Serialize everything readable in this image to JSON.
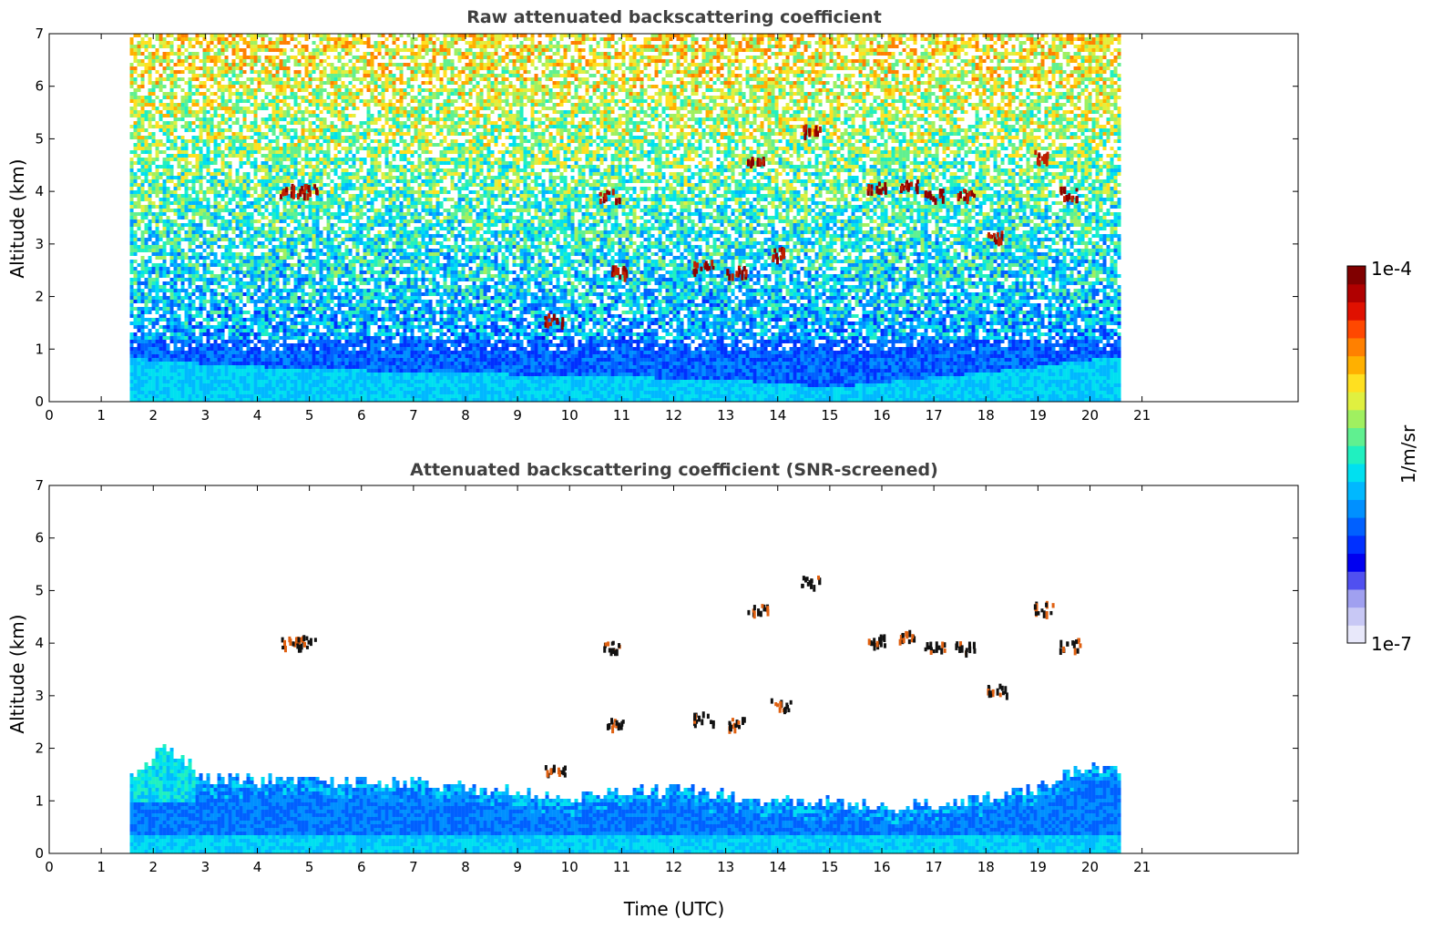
{
  "chart_data": [
    {
      "type": "heatmap",
      "title": "Raw attenuated backscattering coefficient",
      "xlabel": "",
      "ylabel": "Altitude (km)",
      "xlim": [
        0,
        24
      ],
      "ylim": [
        0,
        7
      ],
      "x_ticks": [
        "0",
        "1",
        "2",
        "3",
        "4",
        "5",
        "6",
        "7",
        "8",
        "9",
        "10",
        "11",
        "12",
        "13",
        "14",
        "15",
        "16",
        "17",
        "18",
        "19",
        "20",
        "21"
      ],
      "y_ticks": [
        "0",
        "1",
        "2",
        "3",
        "4",
        "5",
        "6",
        "7"
      ],
      "data_extent_hours": [
        1.55,
        20.55
      ],
      "log_scale": true,
      "boundary_layer_top_km": [
        [
          1.6,
          0.85
        ],
        [
          3.0,
          0.75
        ],
        [
          5.0,
          0.65
        ],
        [
          7.0,
          0.6
        ],
        [
          9.0,
          0.55
        ],
        [
          11.0,
          0.5
        ],
        [
          13.0,
          0.45
        ],
        [
          15.0,
          0.3
        ],
        [
          17.0,
          0.5
        ],
        [
          19.0,
          0.7
        ],
        [
          20.5,
          0.9
        ]
      ],
      "clouds": [
        {
          "time": 4.6,
          "altitude_km": 4.05
        },
        {
          "time": 4.95,
          "altitude_km": 4.05
        },
        {
          "time": 9.7,
          "altitude_km": 1.6
        },
        {
          "time": 10.75,
          "altitude_km": 3.95
        },
        {
          "time": 10.9,
          "altitude_km": 2.5
        },
        {
          "time": 12.55,
          "altitude_km": 2.6
        },
        {
          "time": 13.2,
          "altitude_km": 2.5
        },
        {
          "time": 13.6,
          "altitude_km": 4.65
        },
        {
          "time": 14.05,
          "altitude_km": 2.85
        },
        {
          "time": 14.6,
          "altitude_km": 5.2
        },
        {
          "time": 15.9,
          "altitude_km": 4.1
        },
        {
          "time": 16.5,
          "altitude_km": 4.15
        },
        {
          "time": 17.0,
          "altitude_km": 3.95
        },
        {
          "time": 17.6,
          "altitude_km": 3.95
        },
        {
          "time": 18.2,
          "altitude_km": 3.15
        },
        {
          "time": 19.1,
          "altitude_km": 4.7
        },
        {
          "time": 19.6,
          "altitude_km": 4.0
        }
      ]
    },
    {
      "type": "heatmap",
      "title": "Attenuated backscattering coefficient (SNR-screened)",
      "xlabel": "Time (UTC)",
      "ylabel": "Altitude (km)",
      "xlim": [
        0,
        24
      ],
      "ylim": [
        0,
        7
      ],
      "x_ticks": [
        "0",
        "1",
        "2",
        "3",
        "4",
        "5",
        "6",
        "7",
        "8",
        "9",
        "10",
        "11",
        "12",
        "13",
        "14",
        "15",
        "16",
        "17",
        "18",
        "19",
        "20",
        "21"
      ],
      "y_ticks": [
        "0",
        "1",
        "2",
        "3",
        "4",
        "5",
        "6",
        "7"
      ],
      "data_extent_hours": [
        1.55,
        20.55
      ],
      "log_scale": true,
      "screened_top_km": [
        [
          1.6,
          1.5
        ],
        [
          2.2,
          2.1
        ],
        [
          3.0,
          1.45
        ],
        [
          5.0,
          1.4
        ],
        [
          7.0,
          1.35
        ],
        [
          9.0,
          1.2
        ],
        [
          10.0,
          1.1
        ],
        [
          12.0,
          1.25
        ],
        [
          14.0,
          1.0
        ],
        [
          15.0,
          1.0
        ],
        [
          16.0,
          0.9
        ],
        [
          17.0,
          0.95
        ],
        [
          18.0,
          1.1
        ],
        [
          19.0,
          1.3
        ],
        [
          20.0,
          1.7
        ],
        [
          20.5,
          1.6
        ]
      ],
      "clouds": [
        {
          "time": 4.6,
          "altitude_km": 4.05
        },
        {
          "time": 4.95,
          "altitude_km": 4.05
        },
        {
          "time": 9.7,
          "altitude_km": 1.6
        },
        {
          "time": 10.75,
          "altitude_km": 3.95
        },
        {
          "time": 10.9,
          "altitude_km": 2.5
        },
        {
          "time": 12.55,
          "altitude_km": 2.6
        },
        {
          "time": 13.2,
          "altitude_km": 2.5
        },
        {
          "time": 13.6,
          "altitude_km": 4.65
        },
        {
          "time": 14.05,
          "altitude_km": 2.85
        },
        {
          "time": 14.6,
          "altitude_km": 5.2
        },
        {
          "time": 15.9,
          "altitude_km": 4.1
        },
        {
          "time": 16.5,
          "altitude_km": 4.15
        },
        {
          "time": 17.0,
          "altitude_km": 3.95
        },
        {
          "time": 17.6,
          "altitude_km": 3.95
        },
        {
          "time": 18.2,
          "altitude_km": 3.15
        },
        {
          "time": 19.1,
          "altitude_km": 4.7
        },
        {
          "time": 19.6,
          "altitude_km": 4.0
        }
      ]
    }
  ],
  "colorbar": {
    "label": "1/m/sr",
    "max_label": "1e-4",
    "min_label": "1e-7",
    "colors": [
      "#e8e8fa",
      "#c8c8f5",
      "#a0a0f0",
      "#5050f0",
      "#0000f0",
      "#0030ff",
      "#0060ff",
      "#0090ff",
      "#00b8ff",
      "#00e0f0",
      "#20f0c0",
      "#60f090",
      "#a0f060",
      "#e0f040",
      "#ffe020",
      "#ffb000",
      "#ff8000",
      "#ff4800",
      "#e01000",
      "#b00000",
      "#800000"
    ]
  }
}
